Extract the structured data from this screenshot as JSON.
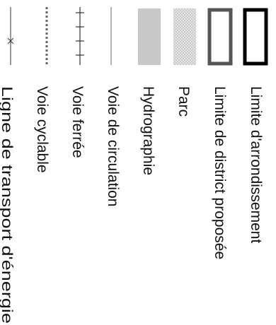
{
  "legend": {
    "items": [
      {
        "label": "Limite d'arrondissement",
        "symbol": "district-boundary-symbol"
      },
      {
        "label": "Limite de district proposée",
        "symbol": "proposed-district-boundary-symbol"
      },
      {
        "label": "Parc",
        "symbol": "park-symbol"
      },
      {
        "label": "Hydrographie",
        "symbol": "hydrography-symbol"
      },
      {
        "label": "Voie de circulation",
        "symbol": "road-symbol"
      },
      {
        "label": "Voie ferrée",
        "symbol": "railway-symbol"
      },
      {
        "label": "Voie cyclable",
        "symbol": "bike-lane-symbol"
      },
      {
        "label": "Ligne de transport d'énergie",
        "symbol": "power-line-symbol"
      }
    ],
    "colors": {
      "district_boundary": "#000000",
      "proposed_district_boundary": "#555555",
      "park_fill": "#e6e6e6",
      "hydrography_fill": "#c8c8c8",
      "road": "#999999",
      "railway": "#333333",
      "bike_lane": "#666666",
      "power_line": "#333333"
    }
  }
}
